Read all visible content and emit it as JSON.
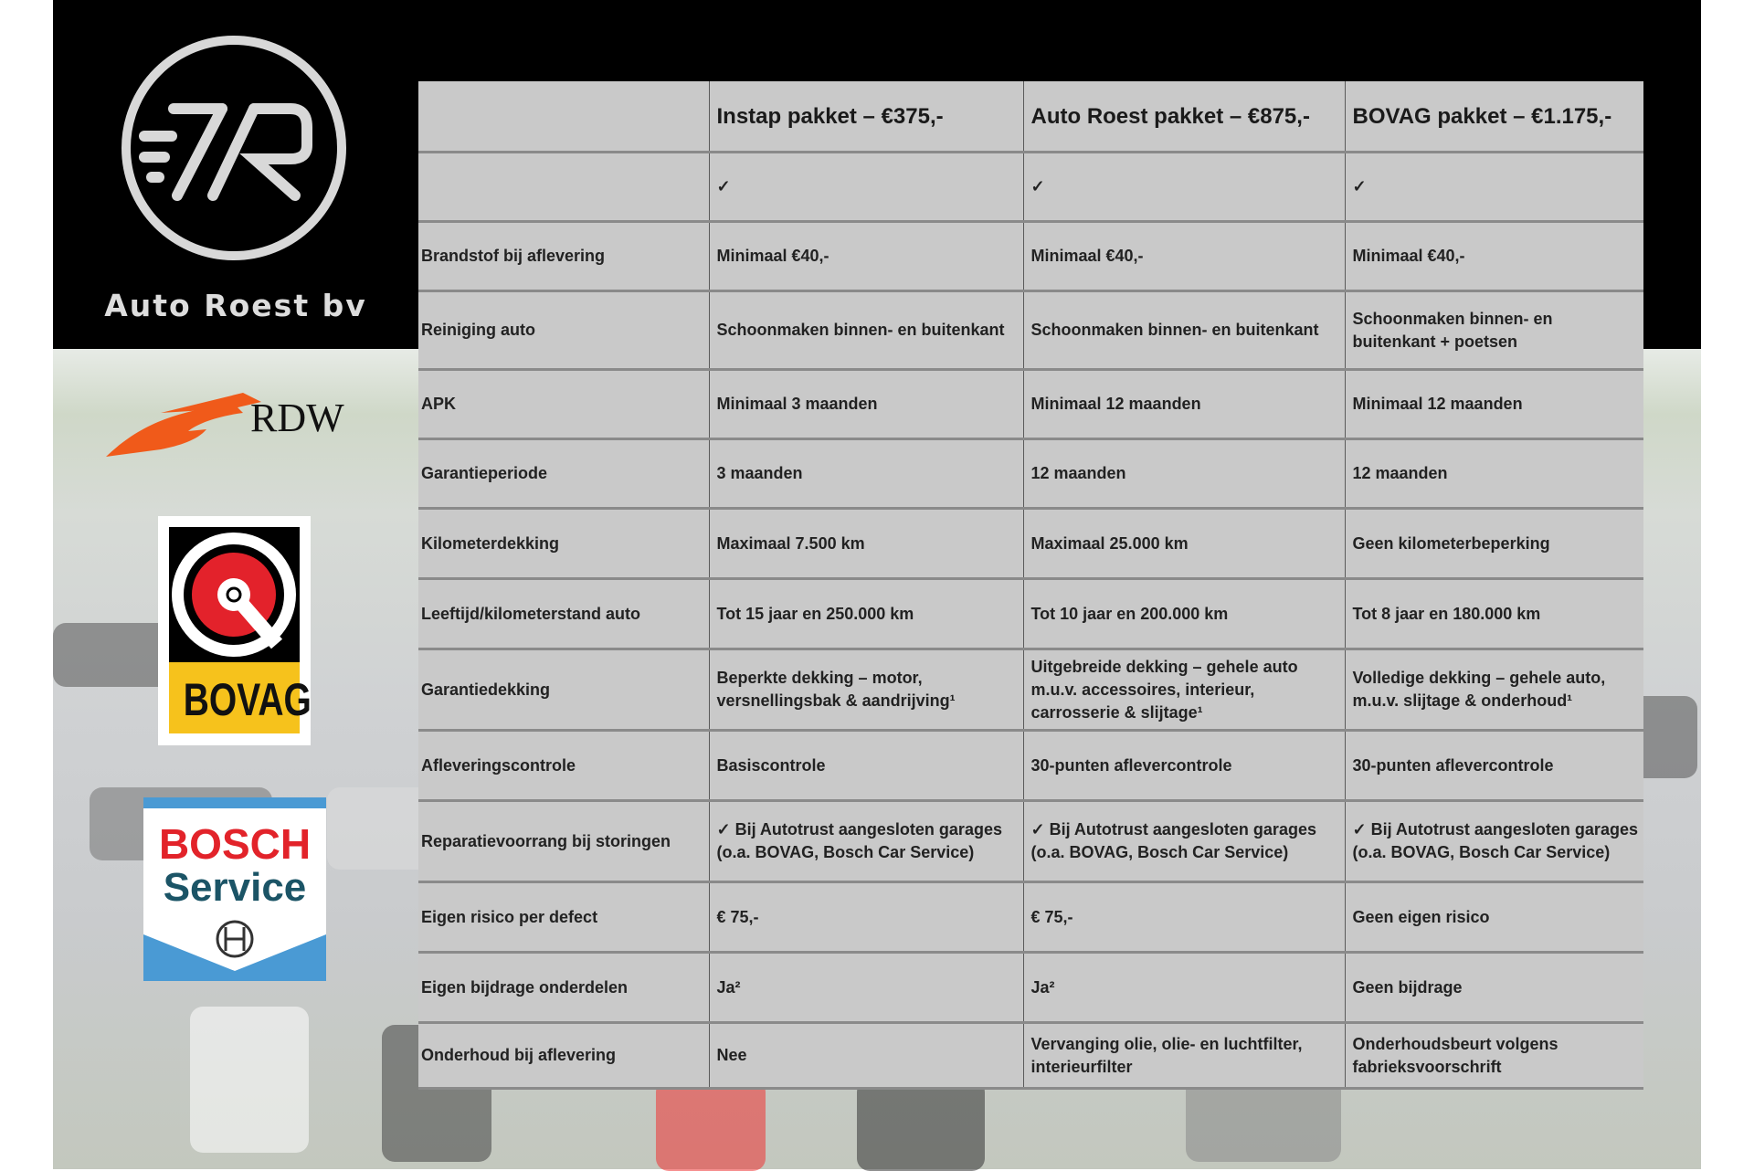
{
  "brand": {
    "name": "Auto Roest bv",
    "logo_letters": "7R"
  },
  "logos": {
    "rdw": "RDW",
    "bovag": "BOVAG",
    "bosch_line1": "BOSCH",
    "bosch_line2": "Service"
  },
  "table": {
    "headers": [
      "",
      "Instap pakket – €375,-",
      "Auto Roest pakket – €875,-",
      "BOVAG pakket – €1.175,-"
    ],
    "rows": [
      [
        "",
        "✓",
        "✓",
        "✓"
      ],
      [
        "Brandstof bij aflevering",
        "Minimaal €40,-",
        "Minimaal €40,-",
        "Minimaal €40,-"
      ],
      [
        "Reiniging auto",
        "Schoonmaken binnen- en buitenkant",
        "Schoonmaken binnen- en buitenkant",
        "Schoonmaken binnen- en buitenkant + poetsen"
      ],
      [
        "APK",
        "Minimaal 3 maanden",
        "Minimaal 12 maanden",
        "Minimaal 12 maanden"
      ],
      [
        "Garantieperiode",
        "3 maanden",
        "12 maanden",
        "12 maanden"
      ],
      [
        "Kilometerdekking",
        "Maximaal 7.500 km",
        "Maximaal 25.000 km",
        "Geen kilometerbeperking"
      ],
      [
        "Leeftijd/kilometerstand auto",
        "Tot 15 jaar en 250.000 km",
        "Tot 10 jaar en 200.000 km",
        "Tot 8 jaar en 180.000 km"
      ],
      [
        "Garantiedekking",
        "Beperkte dekking – motor, versnellingsbak & aandrijving¹",
        "Uitgebreide dekking – gehele auto m.u.v. accessoires, interieur, carrosserie & slijtage¹",
        "Volledige dekking – gehele auto, m.u.v. slijtage & onderhoud¹"
      ],
      [
        "Afleveringscontrole",
        "Basiscontrole",
        "30-punten aflevercontrole",
        "30-punten aflevercontrole"
      ],
      [
        "Reparatievoorrang bij storingen",
        "✓ Bij Autotrust aangesloten garages (o.a. BOVAG, Bosch Car Service)",
        "✓ Bij Autotrust aangesloten garages (o.a. BOVAG, Bosch Car Service)",
        "✓ Bij Autotrust aangesloten garages (o.a. BOVAG, Bosch Car Service)"
      ],
      [
        "Eigen risico per defect",
        "€ 75,-",
        "€ 75,-",
        "Geen eigen risico"
      ],
      [
        "Eigen bijdrage onderdelen",
        "Ja²",
        "Ja²",
        "Geen bijdrage"
      ],
      [
        "Onderhoud bij aflevering",
        "Nee",
        "Vervanging olie, olie- en luchtfilter, interieurfilter",
        "Onderhoudsbeurt volgens fabrieksvoorschrift"
      ]
    ]
  },
  "colors": {
    "rdw_orange": "#f05a1a",
    "bovag_red": "#e3222b",
    "bovag_yellow": "#f6c21c",
    "bosch_red": "#e2232a",
    "bosch_teal": "#1b5466",
    "bosch_blue": "#4a9ad4"
  }
}
